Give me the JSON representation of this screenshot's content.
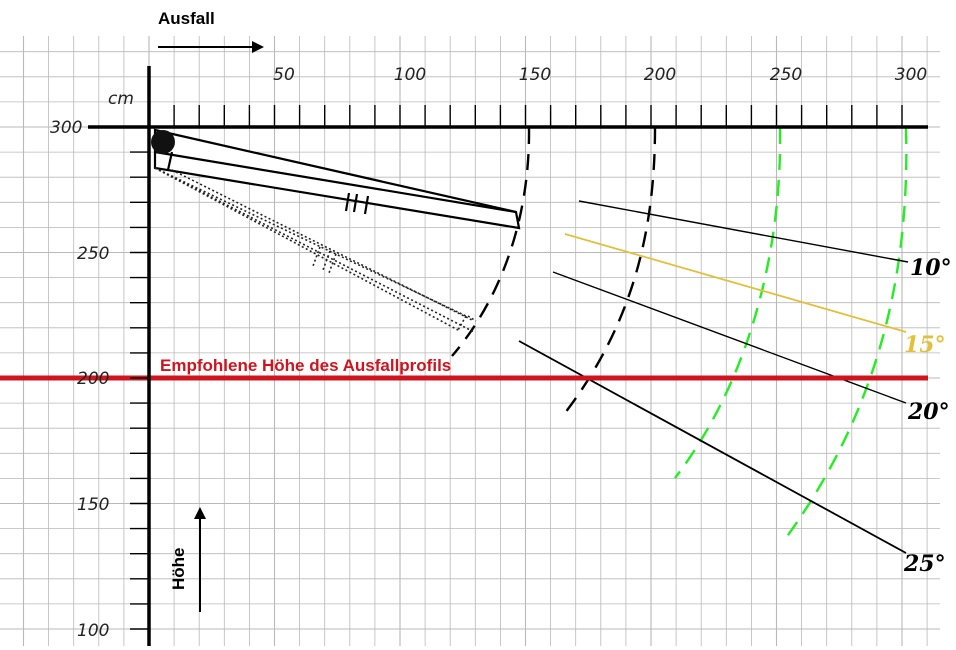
{
  "direction_label": "Ausfall",
  "height_label": "Höhe",
  "unit": "cm",
  "x_ticks": [
    "50",
    "100",
    "150",
    "200",
    "250",
    "300"
  ],
  "y_ticks": [
    "300",
    "250",
    "200",
    "150",
    "100"
  ],
  "recommended_line": {
    "text": "Empfohlene Höhe des Ausfallprofils",
    "value_cm": 200,
    "color": "#d0141e"
  },
  "angle_lines": [
    {
      "label": "10°",
      "degrees": 10,
      "color": "#000000"
    },
    {
      "label": "15°",
      "degrees": 15,
      "color": "#e3bf3a"
    },
    {
      "label": "20°",
      "degrees": 20,
      "color": "#000000"
    },
    {
      "label": "25°",
      "degrees": 25,
      "color": "#000000"
    }
  ],
  "colors": {
    "grid": "#b9b9b9",
    "axis": "#000000",
    "arc_black": "#000000",
    "arc_green": "#22ee22"
  }
}
